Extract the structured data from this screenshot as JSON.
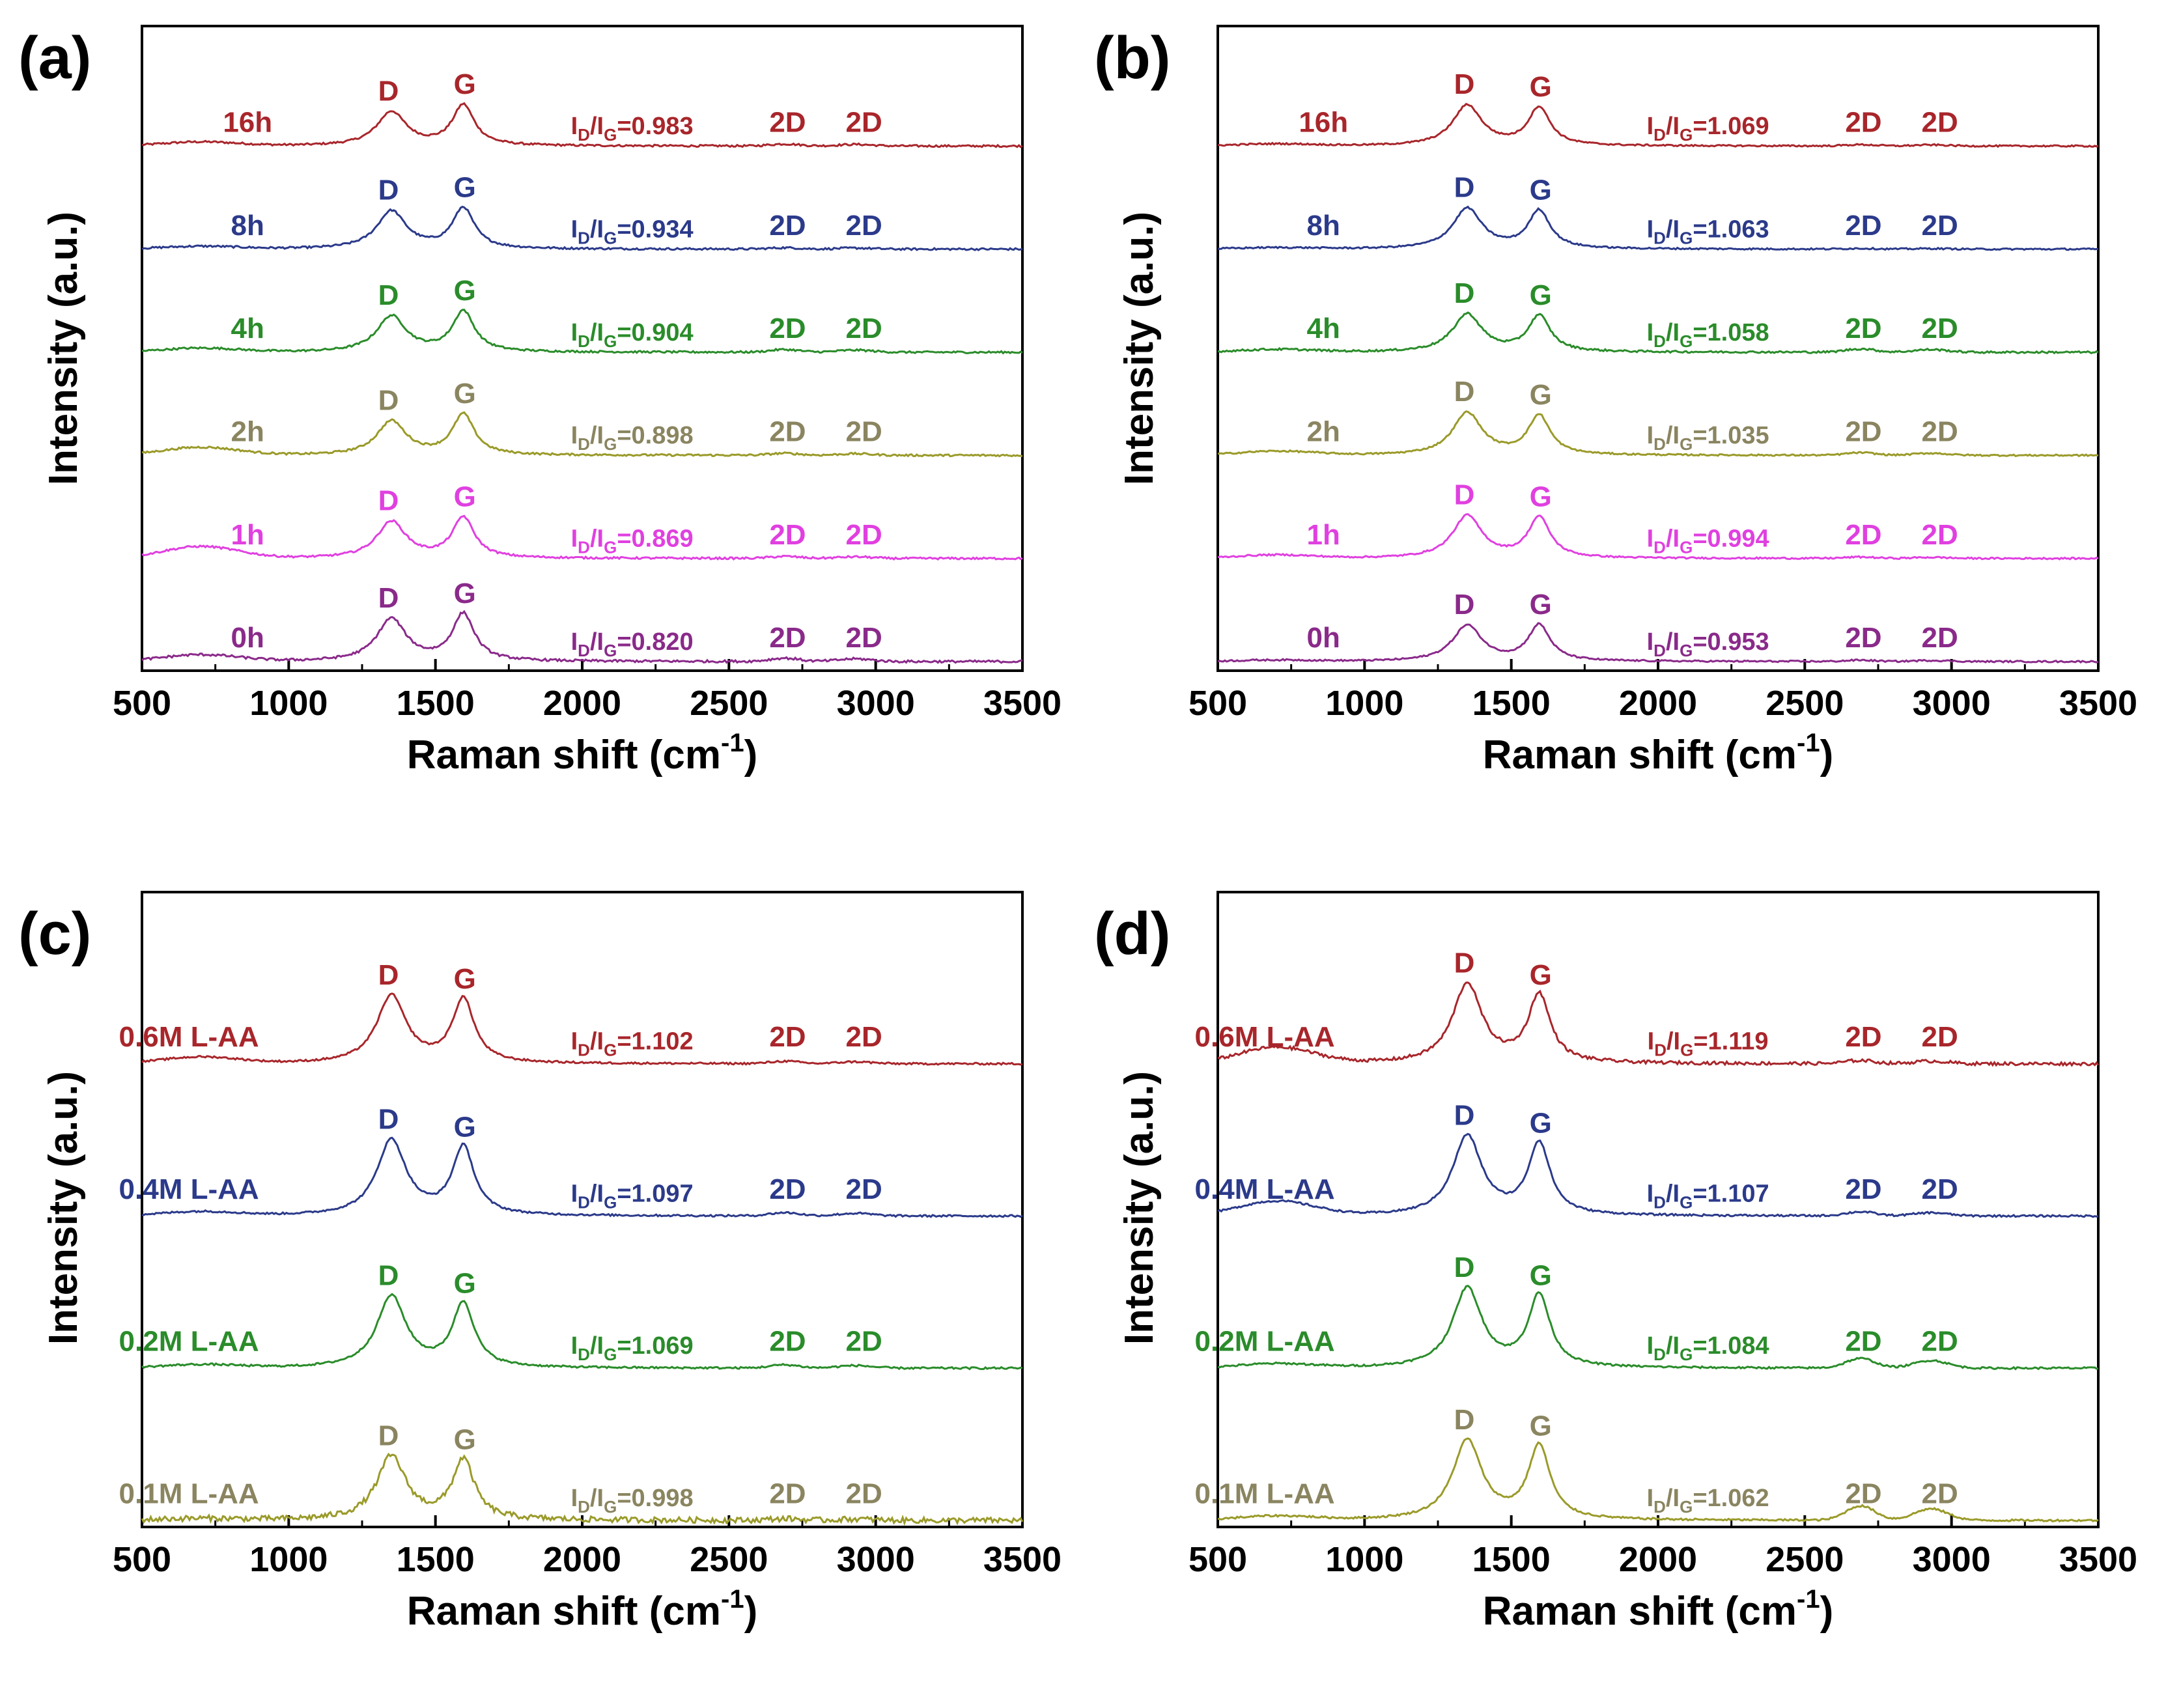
{
  "figure": {
    "x_axis_label": "Raman shift (cm",
    "x_axis_label_sup": "-1",
    "x_axis_label_close": ")",
    "y_axis_label": "Intensity (a.u.)",
    "ratio_prefix": "I",
    "ratio_sub_d": "D",
    "ratio_sep": "/I",
    "ratio_sub_g": "G"
  },
  "colors": {
    "dark_red": "#a8262b",
    "navy": "#2b3a8a",
    "green": "#2a8c2a",
    "olive": "#9a9a2a",
    "olive_text": "#8a8560",
    "magenta": "#e040e0",
    "purple": "#8a2a8a"
  },
  "chart_data": [
    {
      "type": "line",
      "panel": "(a)",
      "xlabel": "Raman shift (cm-1)",
      "ylabel": "Intensity (a.u.)",
      "xlim": [
        500,
        3500
      ],
      "xticks": [
        "500",
        "1000",
        "1500",
        "2000",
        "2500",
        "3000",
        "3500"
      ],
      "peak_labels": [
        "D",
        "G",
        "2D",
        "2D"
      ],
      "series": [
        {
          "name": "16h",
          "ratio": "=0.983",
          "color": "#a8262b",
          "text_color": "#a8262b",
          "d": 0.52,
          "g": 0.62,
          "base": 0.06,
          "bump": 0.03,
          "noise": 0.015
        },
        {
          "name": "8h",
          "ratio": "=0.934",
          "color": "#2b3a8a",
          "text_color": "#2b3a8a",
          "d": 0.58,
          "g": 0.62,
          "base": 0.04,
          "bump": 0.02,
          "noise": 0.015
        },
        {
          "name": "4h",
          "ratio": "=0.904",
          "color": "#2a8c2a",
          "text_color": "#2a8c2a",
          "d": 0.55,
          "g": 0.62,
          "base": 0.06,
          "bump": 0.04,
          "noise": 0.015
        },
        {
          "name": "2h",
          "ratio": "=0.898",
          "color": "#9a9a2a",
          "text_color": "#8a8560",
          "d": 0.52,
          "g": 0.62,
          "base": 0.12,
          "bump": 0.03,
          "noise": 0.015
        },
        {
          "name": "1h",
          "ratio": "=0.869",
          "color": "#e040e0",
          "text_color": "#e040e0",
          "d": 0.56,
          "g": 0.62,
          "base": 0.18,
          "bump": 0.03,
          "noise": 0.015
        },
        {
          "name": "0h",
          "ratio": "=0.820",
          "color": "#8a2a8a",
          "text_color": "#8a2a8a",
          "d": 0.65,
          "g": 0.72,
          "base": 0.1,
          "bump": 0.05,
          "noise": 0.018
        }
      ]
    },
    {
      "type": "line",
      "panel": "(b)",
      "xlabel": "Raman shift (cm-1)",
      "ylabel": "Intensity (a.u.)",
      "xlim": [
        500,
        3500
      ],
      "xticks": [
        "500",
        "1000",
        "1500",
        "2000",
        "2500",
        "3000",
        "3500"
      ],
      "peak_labels": [
        "D",
        "G",
        "2D",
        "2D"
      ],
      "series": [
        {
          "name": "16h",
          "ratio": "=1.069",
          "color": "#a8262b",
          "text_color": "#a8262b",
          "d": 0.62,
          "g": 0.58,
          "base": 0.03,
          "bump": 0.02,
          "noise": 0.012
        },
        {
          "name": "8h",
          "ratio": "=1.063",
          "color": "#2b3a8a",
          "text_color": "#2b3a8a",
          "d": 0.62,
          "g": 0.58,
          "base": 0.02,
          "bump": 0.01,
          "noise": 0.012
        },
        {
          "name": "4h",
          "ratio": "=1.058",
          "color": "#2a8c2a",
          "text_color": "#2a8c2a",
          "d": 0.58,
          "g": 0.55,
          "base": 0.04,
          "bump": 0.05,
          "noise": 0.015
        },
        {
          "name": "2h",
          "ratio": "=1.035",
          "color": "#9a9a2a",
          "text_color": "#8a8560",
          "d": 0.65,
          "g": 0.6,
          "base": 0.06,
          "bump": 0.04,
          "noise": 0.012
        },
        {
          "name": "1h",
          "ratio": "=0.994",
          "color": "#e040e0",
          "text_color": "#e040e0",
          "d": 0.65,
          "g": 0.62,
          "base": 0.05,
          "bump": 0.02,
          "noise": 0.012
        },
        {
          "name": "0h",
          "ratio": "=0.953",
          "color": "#8a2a8a",
          "text_color": "#8a2a8a",
          "d": 0.55,
          "g": 0.55,
          "base": 0.02,
          "bump": 0.02,
          "noise": 0.012
        }
      ]
    },
    {
      "type": "line",
      "panel": "(c)",
      "xlabel": "Raman shift (cm-1)",
      "ylabel": "Intensity (a.u.)",
      "xlim": [
        500,
        3500
      ],
      "xticks": [
        "500",
        "1000",
        "1500",
        "2000",
        "2500",
        "3000",
        "3500"
      ],
      "peak_labels": [
        "D",
        "G",
        "2D",
        "2D"
      ],
      "series": [
        {
          "name": "0.6M L-AA",
          "ratio": "=1.102",
          "color": "#a8262b",
          "text_color": "#a8262b",
          "d": 0.85,
          "g": 0.8,
          "base": 0.08,
          "bump": 0.03,
          "noise": 0.012
        },
        {
          "name": "0.4M L-AA",
          "ratio": "=1.097",
          "color": "#2b3a8a",
          "text_color": "#2b3a8a",
          "d": 0.95,
          "g": 0.85,
          "base": 0.05,
          "bump": 0.04,
          "noise": 0.012
        },
        {
          "name": "0.2M L-AA",
          "ratio": "=1.069",
          "color": "#2a8c2a",
          "text_color": "#2a8c2a",
          "d": 0.9,
          "g": 0.8,
          "base": 0.04,
          "bump": 0.04,
          "noise": 0.012
        },
        {
          "name": "0.1M L-AA",
          "ratio": "=0.998",
          "color": "#9a9a2a",
          "text_color": "#8a8560",
          "d": 0.8,
          "g": 0.75,
          "base": 0.02,
          "bump": 0.02,
          "noise": 0.035
        }
      ]
    },
    {
      "type": "line",
      "panel": "(d)",
      "xlabel": "Raman shift (cm-1)",
      "ylabel": "Intensity (a.u.)",
      "xlim": [
        500,
        3500
      ],
      "xticks": [
        "500",
        "1000",
        "1500",
        "2000",
        "2500",
        "3000",
        "3500"
      ],
      "peak_labels": [
        "D",
        "G",
        "2D",
        "2D"
      ],
      "series": [
        {
          "name": "0.6M L-AA",
          "ratio": "=1.119",
          "color": "#a8262b",
          "text_color": "#a8262b",
          "d": 1.0,
          "g": 0.85,
          "base": 0.2,
          "bump": 0.04,
          "noise": 0.02
        },
        {
          "name": "0.4M L-AA",
          "ratio": "=1.107",
          "color": "#2b3a8a",
          "text_color": "#2b3a8a",
          "d": 1.0,
          "g": 0.9,
          "base": 0.18,
          "bump": 0.05,
          "noise": 0.012
        },
        {
          "name": "0.2M L-AA",
          "ratio": "=1.084",
          "color": "#2a8c2a",
          "text_color": "#2a8c2a",
          "d": 1.0,
          "g": 0.9,
          "base": 0.05,
          "bump": 0.12,
          "noise": 0.012
        },
        {
          "name": "0.1M L-AA",
          "ratio": "=1.062",
          "color": "#9a9a2a",
          "text_color": "#8a8560",
          "d": 1.0,
          "g": 0.92,
          "base": 0.05,
          "bump": 0.18,
          "noise": 0.012
        }
      ]
    }
  ]
}
